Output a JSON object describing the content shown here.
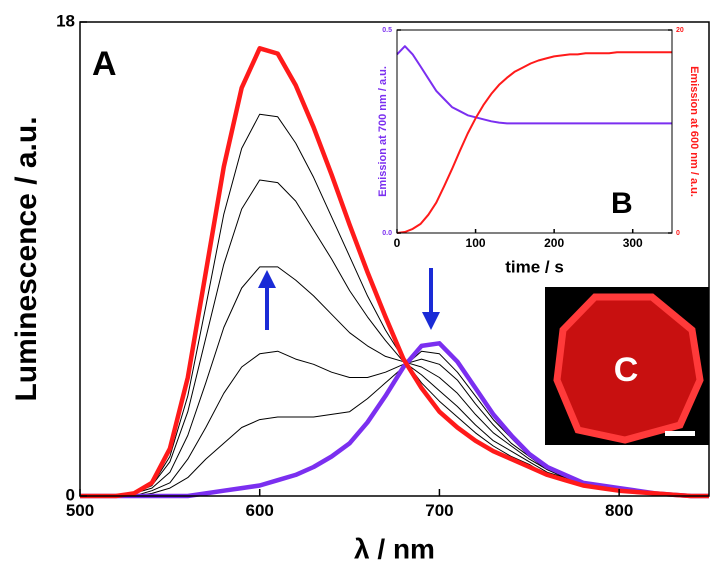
{
  "chart_data": [
    {
      "type": "line",
      "xlabel": "λ / nm",
      "ylabel": "Luminescence / a.u.",
      "annotation": "A",
      "x": [
        500,
        510,
        520,
        530,
        540,
        550,
        560,
        570,
        580,
        590,
        600,
        610,
        620,
        630,
        640,
        650,
        660,
        670,
        680,
        690,
        700,
        710,
        720,
        730,
        740,
        750,
        760,
        770,
        780,
        790,
        800,
        810,
        820,
        830,
        840,
        850
      ],
      "xlim": [
        500,
        850
      ],
      "xticks": [
        500,
        600,
        700,
        800
      ],
      "ylim": [
        0,
        18
      ],
      "yticks": [
        0,
        18
      ],
      "series": [
        {
          "color": "#000000",
          "values": [
            0,
            0,
            0,
            0.1,
            0.4,
            1.5,
            3.8,
            7.2,
            10.7,
            13.2,
            14.5,
            14.4,
            13.4,
            12.1,
            10.6,
            9.1,
            7.6,
            6.3,
            5.2,
            4.3,
            3.6,
            3.0,
            2.4,
            1.9,
            1.5,
            1.2,
            0.8,
            0.6,
            0.4,
            0.3,
            0.2,
            0.2,
            0.1,
            0.1,
            0,
            0
          ]
        },
        {
          "color": "#000000",
          "values": [
            0,
            0,
            0,
            0.1,
            0.4,
            1.3,
            3.2,
            6.0,
            8.8,
            10.9,
            12.0,
            11.9,
            11.2,
            10.1,
            9.0,
            7.8,
            6.8,
            5.9,
            5.1,
            4.6,
            4.0,
            3.4,
            2.7,
            2.1,
            1.7,
            1.3,
            0.9,
            0.7,
            0.4,
            0.3,
            0.2,
            0.2,
            0.1,
            0.1,
            0,
            0
          ]
        },
        {
          "color": "#000000",
          "values": [
            0,
            0,
            0,
            0.1,
            0.3,
            0.9,
            2.3,
            4.3,
            6.4,
            7.9,
            8.7,
            8.7,
            8.2,
            7.6,
            6.9,
            6.2,
            5.7,
            5.3,
            5.1,
            4.9,
            4.5,
            3.9,
            3.1,
            2.4,
            1.9,
            1.4,
            1.0,
            0.7,
            0.5,
            0.4,
            0.3,
            0.2,
            0.1,
            0.1,
            0,
            0
          ]
        },
        {
          "color": "#000000",
          "values": [
            0,
            0,
            0,
            0,
            0.2,
            0.5,
            1.4,
            2.6,
            3.9,
            4.9,
            5.4,
            5.5,
            5.2,
            5.0,
            4.7,
            4.5,
            4.5,
            4.7,
            5.0,
            5.2,
            5.0,
            4.4,
            3.5,
            2.7,
            2.0,
            1.5,
            1.0,
            0.7,
            0.5,
            0.4,
            0.3,
            0.2,
            0.1,
            0,
            0,
            0
          ]
        },
        {
          "color": "#000000",
          "values": [
            0,
            0,
            0,
            0,
            0.1,
            0.3,
            0.7,
            1.4,
            2.0,
            2.6,
            2.9,
            3.0,
            3.0,
            3.0,
            3.1,
            3.2,
            3.7,
            4.3,
            4.9,
            5.5,
            5.4,
            4.7,
            3.8,
            2.9,
            2.2,
            1.5,
            1.1,
            0.8,
            0.5,
            0.4,
            0.3,
            0.2,
            0.1,
            0,
            0,
            0
          ]
        },
        {
          "color": "#7b2ff0",
          "values": [
            0,
            0,
            0,
            0,
            0,
            0,
            0,
            0.1,
            0.2,
            0.3,
            0.4,
            0.6,
            0.8,
            1.1,
            1.5,
            2.0,
            2.8,
            3.8,
            4.9,
            5.7,
            5.8,
            5.1,
            4.1,
            3.1,
            2.3,
            1.6,
            1.1,
            0.8,
            0.5,
            0.4,
            0.3,
            0.2,
            0.1,
            0.05,
            0,
            0
          ]
        },
        {
          "color": "#ff1a1a",
          "values": [
            0,
            0,
            0,
            0.1,
            0.5,
            1.8,
            4.5,
            8.5,
            12.5,
            15.5,
            17,
            16.8,
            15.6,
            14,
            12.2,
            10.3,
            8.5,
            6.8,
            5.2,
            4.1,
            3.2,
            2.6,
            2.1,
            1.7,
            1.4,
            1.1,
            0.8,
            0.6,
            0.4,
            0.3,
            0.2,
            0.15,
            0.1,
            0.05,
            0,
            0
          ]
        }
      ]
    },
    {
      "type": "line",
      "xlabel": "time / s",
      "ylabel": "Emission at 700 nm / a.u.",
      "y2label": "Emission at 600 nm / a.u.",
      "annotation": "B",
      "x": [
        0,
        10,
        20,
        30,
        40,
        50,
        60,
        70,
        80,
        90,
        100,
        110,
        120,
        130,
        140,
        150,
        160,
        170,
        180,
        190,
        200,
        210,
        220,
        230,
        240,
        250,
        260,
        270,
        280,
        290,
        300,
        310,
        320,
        330,
        340,
        350
      ],
      "xlim": [
        0,
        350
      ],
      "xticks": [
        0,
        100,
        200,
        300
      ],
      "ylim": [
        0,
        0.5
      ],
      "yticks": [
        {
          "value": 0,
          "label": "0.0"
        },
        0.5
      ],
      "y2lim": [
        0,
        20
      ],
      "y2ticks": [
        0,
        20
      ],
      "series": [
        {
          "color": "#7b2ff0",
          "values": [
            0.44,
            0.46,
            0.44,
            0.41,
            0.38,
            0.35,
            0.33,
            0.31,
            0.3,
            0.29,
            0.285,
            0.28,
            0.275,
            0.272,
            0.27,
            0.27,
            0.27,
            0.27,
            0.27,
            0.27,
            0.27,
            0.27,
            0.27,
            0.27,
            0.27,
            0.27,
            0.27,
            0.27,
            0.27,
            0.27,
            0.27,
            0.27,
            0.27,
            0.27,
            0.27,
            0.27
          ]
        },
        {
          "color": "#ff1a1a",
          "axis": "y2",
          "values": [
            0,
            0.1,
            0.4,
            0.9,
            1.8,
            3,
            4.6,
            6.3,
            8.1,
            9.8,
            11.3,
            12.6,
            13.7,
            14.6,
            15.3,
            15.9,
            16.3,
            16.7,
            17,
            17.2,
            17.4,
            17.5,
            17.6,
            17.6,
            17.7,
            17.7,
            17.7,
            17.7,
            17.8,
            17.8,
            17.8,
            17.8,
            17.8,
            17.8,
            17.8,
            17.8
          ]
        }
      ]
    }
  ],
  "photo": {
    "label": "C"
  }
}
